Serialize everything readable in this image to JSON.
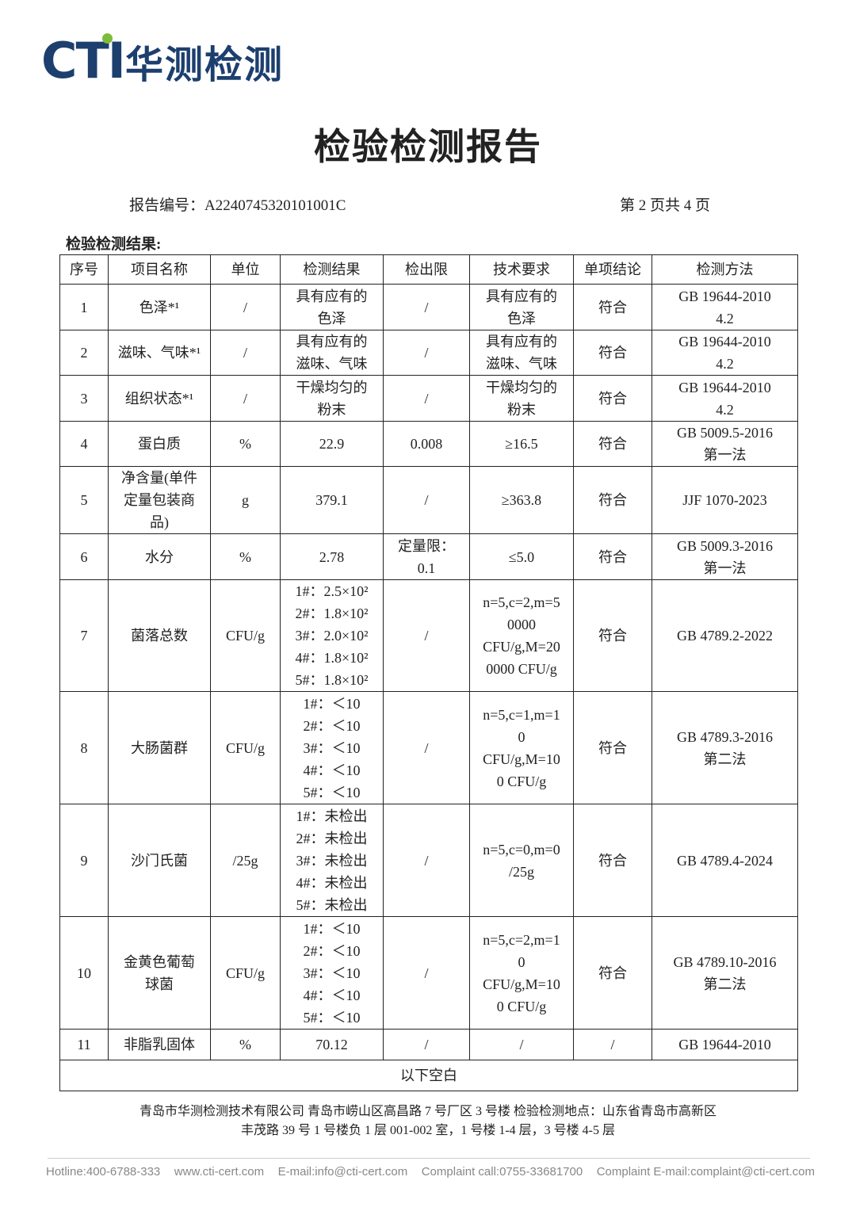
{
  "header": {
    "logo_mark": "CTI",
    "logo_name": "华测检测"
  },
  "title": "检验检测报告",
  "report_no": "报告编号：A2240745320101001C",
  "page_info": "第 2 页共 4 页",
  "section_title": "检验检测结果:",
  "table": {
    "columns": [
      "序号",
      "项目名称",
      "单位",
      "检测结果",
      "检出限",
      "技术要求",
      "单项结论",
      "检测方法"
    ],
    "rows": [
      [
        "1",
        "色泽*¹",
        "/",
        "具有应有的\n色泽",
        "/",
        "具有应有的\n色泽",
        "符合",
        "GB 19644-2010\n4.2"
      ],
      [
        "2",
        "滋味、气味*¹",
        "/",
        "具有应有的\n滋味、气味",
        "/",
        "具有应有的\n滋味、气味",
        "符合",
        "GB 19644-2010\n4.2"
      ],
      [
        "3",
        "组织状态*¹",
        "/",
        "干燥均匀的\n粉末",
        "/",
        "干燥均匀的\n粉末",
        "符合",
        "GB 19644-2010\n4.2"
      ],
      [
        "4",
        "蛋白质",
        "%",
        "22.9",
        "0.008",
        "≥16.5",
        "符合",
        "GB 5009.5-2016\n第一法"
      ],
      [
        "5",
        "净含量(单件\n定量包装商\n品)",
        "g",
        "379.1",
        "/",
        "≥363.8",
        "符合",
        "JJF 1070-2023"
      ],
      [
        "6",
        "水分",
        "%",
        "2.78",
        "定量限：\n0.1",
        "≤5.0",
        "符合",
        "GB 5009.3-2016\n第一法"
      ],
      [
        "7",
        "菌落总数",
        "CFU/g",
        "1#：2.5×10²\n2#：1.8×10²\n3#：2.0×10²\n4#：1.8×10²\n5#：1.8×10²",
        "/",
        "n=5,c=2,m=5\n0000\nCFU/g,M=20\n0000 CFU/g",
        "符合",
        "GB 4789.2-2022"
      ],
      [
        "8",
        "大肠菌群",
        "CFU/g",
        "1#：＜10\n2#：＜10\n3#：＜10\n4#：＜10\n5#：＜10",
        "/",
        "n=5,c=1,m=1\n0\nCFU/g,M=10\n0 CFU/g",
        "符合",
        "GB 4789.3-2016\n第二法"
      ],
      [
        "9",
        "沙门氏菌",
        "/25g",
        "1#：未检出\n2#：未检出\n3#：未检出\n4#：未检出\n5#：未检出",
        "/",
        "n=5,c=0,m=0\n/25g",
        "符合",
        "GB 4789.4-2024"
      ],
      [
        "10",
        "金黄色葡萄\n球菌",
        "CFU/g",
        "1#：＜10\n2#：＜10\n3#：＜10\n4#：＜10\n5#：＜10",
        "/",
        "n=5,c=2,m=1\n0\nCFU/g,M=10\n0 CFU/g",
        "符合",
        "GB 4789.10-2016\n第二法"
      ],
      [
        "11",
        "非脂乳固体",
        "%",
        "70.12",
        "/",
        "/",
        "/",
        "GB 19644-2010"
      ]
    ],
    "note": "以下空白"
  },
  "address": [
    "青岛市华测检测技术有限公司 青岛市崂山区高昌路 7 号厂区 3 号楼 检验检测地点：山东省青岛市高新区",
    "丰茂路 39 号 1 号楼负 1 层 001-002 室，1 号楼 1-4 层，3 号楼 4-5 层"
  ],
  "footer": [
    "Hotline:400-6788-333",
    "www.cti-cert.com",
    "E-mail:info@cti-cert.com",
    "Complaint call:0755-33681700",
    "Complaint E-mail:complaint@cti-cert.com"
  ]
}
